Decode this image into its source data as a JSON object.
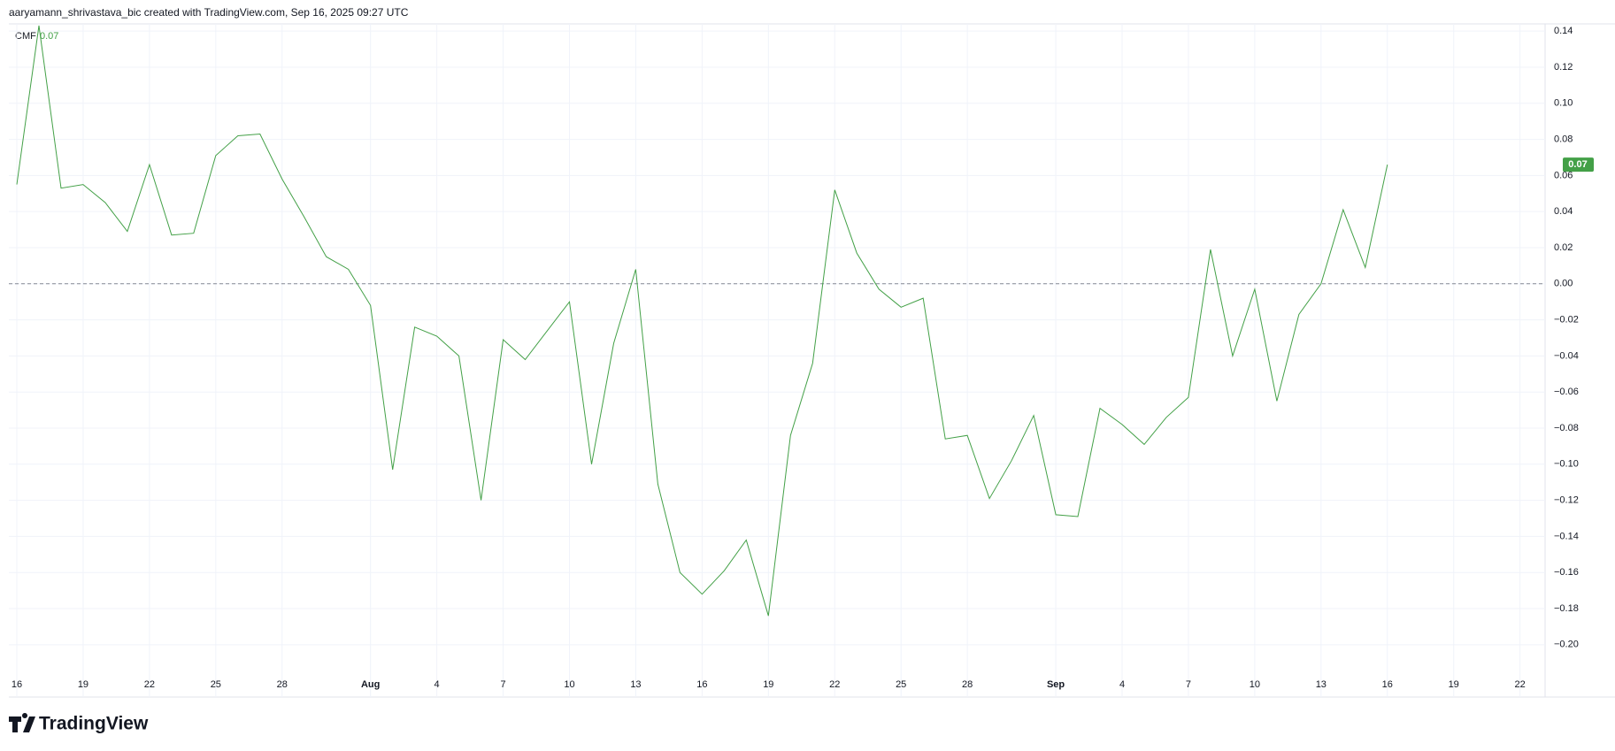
{
  "header": {
    "attribution": "aaryamann_shrivastava_bic created with TradingView.com, Sep 16, 2025 09:27 UTC"
  },
  "footer": {
    "brand": "TradingView"
  },
  "chart_data": {
    "type": "line",
    "legend_name": "CMF",
    "last_value_label": "0.07",
    "color": "#43a047",
    "grid": true,
    "categories": [
      "16",
      null,
      null,
      "19",
      null,
      null,
      "22",
      null,
      null,
      "25",
      null,
      null,
      "28",
      null,
      null,
      null,
      "Aug",
      null,
      null,
      "4",
      null,
      null,
      "7",
      null,
      null,
      "10",
      null,
      null,
      "13",
      null,
      null,
      "16",
      null,
      null,
      "19",
      null,
      null,
      "22",
      null,
      null,
      "25",
      null,
      null,
      "28",
      null,
      null,
      null,
      "Sep",
      null,
      null,
      "4",
      null,
      null,
      "7",
      null,
      null,
      "10",
      null,
      null,
      "13",
      null,
      null,
      "16",
      null,
      null,
      "19",
      null,
      null,
      "22",
      null
    ],
    "values": [
      0.055,
      0.143,
      0.053,
      0.055,
      0.045,
      0.029,
      0.066,
      0.027,
      0.028,
      0.071,
      0.082,
      0.083,
      0.058,
      0.037,
      0.015,
      0.008,
      -0.012,
      -0.103,
      -0.024,
      -0.029,
      -0.04,
      -0.12,
      -0.031,
      -0.042,
      -0.026,
      -0.01,
      -0.1,
      -0.033,
      0.008,
      -0.111,
      -0.16,
      -0.172,
      -0.159,
      -0.142,
      -0.184,
      -0.084,
      -0.044,
      0.052,
      0.017,
      -0.003,
      -0.013,
      -0.008,
      -0.086,
      -0.084,
      -0.119,
      -0.098,
      -0.073,
      -0.128,
      -0.129,
      -0.069,
      -0.078,
      -0.089,
      -0.074,
      -0.063,
      0.019,
      -0.04,
      -0.003,
      -0.065,
      -0.017,
      0.0,
      0.041,
      0.009,
      0.066,
      null,
      null,
      null,
      null,
      null,
      null,
      null
    ],
    "ylim": [
      -0.229,
      0.144
    ],
    "yticks": [
      {
        "value": 0.14,
        "label": "0.14"
      },
      {
        "value": 0.12,
        "label": "0.12"
      },
      {
        "value": 0.1,
        "label": "0.10"
      },
      {
        "value": 0.08,
        "label": "0.08"
      },
      {
        "value": 0.06,
        "label": "0.06"
      },
      {
        "value": 0.04,
        "label": "0.04"
      },
      {
        "value": 0.02,
        "label": "0.02"
      },
      {
        "value": 0,
        "label": "0.00"
      },
      {
        "value": -0.02,
        "label": "−0.02"
      },
      {
        "value": -0.04,
        "label": "−0.04"
      },
      {
        "value": -0.06,
        "label": "−0.06"
      },
      {
        "value": -0.08,
        "label": "−0.08"
      },
      {
        "value": -0.1,
        "label": "−0.10"
      },
      {
        "value": -0.12,
        "label": "−0.12"
      },
      {
        "value": -0.14,
        "label": "−0.14"
      },
      {
        "value": -0.16,
        "label": "−0.16"
      },
      {
        "value": -0.18,
        "label": "−0.18"
      },
      {
        "value": -0.2,
        "label": "−0.20"
      }
    ]
  }
}
